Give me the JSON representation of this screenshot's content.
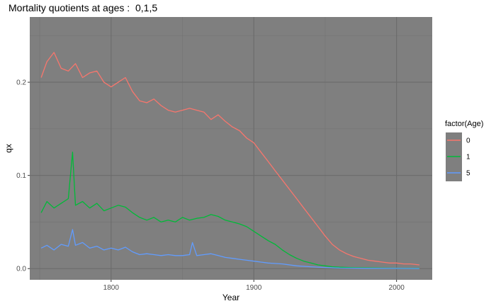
{
  "chart_data": {
    "type": "line",
    "title": "Mortality quotients at ages :  0,1,5",
    "xlabel": "Year",
    "ylabel": "qx",
    "xlim": [
      1743,
      2025
    ],
    "ylim": [
      -0.012,
      0.27
    ],
    "x_ticks": [
      1800,
      1900,
      2000
    ],
    "x_tick_labels": [
      "1800",
      "1900",
      "2000"
    ],
    "y_ticks": [
      0.0,
      0.1,
      0.2
    ],
    "y_tick_labels": [
      "0.0",
      "0.1",
      "0.2"
    ],
    "grid": true,
    "panel_background": "#7f7f7f",
    "legend": {
      "title": "factor(Age)",
      "position": "right",
      "entries": [
        "0",
        "1",
        "5"
      ]
    },
    "series": [
      {
        "name": "0",
        "color": "#F8766D",
        "x": [
          1751,
          1755,
          1760,
          1765,
          1770,
          1775,
          1780,
          1785,
          1790,
          1795,
          1800,
          1805,
          1810,
          1815,
          1820,
          1825,
          1830,
          1835,
          1840,
          1845,
          1850,
          1855,
          1860,
          1865,
          1870,
          1875,
          1880,
          1885,
          1890,
          1895,
          1900,
          1905,
          1910,
          1915,
          1920,
          1925,
          1930,
          1935,
          1940,
          1945,
          1950,
          1955,
          1960,
          1965,
          1970,
          1975,
          1980,
          1985,
          1990,
          1995,
          2000,
          2005,
          2010,
          2016
        ],
        "y": [
          0.205,
          0.222,
          0.232,
          0.215,
          0.212,
          0.22,
          0.205,
          0.21,
          0.212,
          0.2,
          0.195,
          0.2,
          0.205,
          0.19,
          0.18,
          0.178,
          0.182,
          0.175,
          0.17,
          0.168,
          0.17,
          0.172,
          0.17,
          0.168,
          0.16,
          0.165,
          0.158,
          0.152,
          0.148,
          0.14,
          0.135,
          0.125,
          0.115,
          0.105,
          0.095,
          0.085,
          0.075,
          0.065,
          0.055,
          0.045,
          0.035,
          0.026,
          0.02,
          0.016,
          0.013,
          0.011,
          0.009,
          0.008,
          0.007,
          0.006,
          0.006,
          0.005,
          0.005,
          0.004
        ]
      },
      {
        "name": "1",
        "color": "#00BA38",
        "x": [
          1751,
          1755,
          1760,
          1765,
          1770,
          1773,
          1775,
          1780,
          1785,
          1790,
          1795,
          1800,
          1805,
          1810,
          1815,
          1820,
          1825,
          1830,
          1835,
          1840,
          1845,
          1850,
          1855,
          1860,
          1865,
          1870,
          1875,
          1880,
          1885,
          1890,
          1895,
          1900,
          1905,
          1910,
          1915,
          1920,
          1925,
          1930,
          1935,
          1940,
          1945,
          1950,
          1955,
          1960,
          1970,
          1980,
          1990,
          2000,
          2010,
          2016
        ],
        "y": [
          0.06,
          0.072,
          0.065,
          0.07,
          0.075,
          0.125,
          0.068,
          0.072,
          0.065,
          0.07,
          0.062,
          0.065,
          0.068,
          0.066,
          0.06,
          0.055,
          0.052,
          0.055,
          0.05,
          0.052,
          0.05,
          0.055,
          0.052,
          0.054,
          0.055,
          0.058,
          0.056,
          0.052,
          0.05,
          0.048,
          0.045,
          0.04,
          0.035,
          0.03,
          0.026,
          0.02,
          0.015,
          0.011,
          0.008,
          0.006,
          0.004,
          0.003,
          0.002,
          0.0015,
          0.001,
          0.0008,
          0.0006,
          0.0004,
          0.0003,
          0.0003
        ]
      },
      {
        "name": "5",
        "color": "#619CFF",
        "x": [
          1751,
          1755,
          1760,
          1765,
          1770,
          1773,
          1775,
          1780,
          1785,
          1790,
          1795,
          1800,
          1805,
          1810,
          1815,
          1820,
          1825,
          1830,
          1835,
          1840,
          1845,
          1850,
          1855,
          1857,
          1860,
          1865,
          1870,
          1875,
          1880,
          1885,
          1890,
          1895,
          1900,
          1905,
          1910,
          1920,
          1930,
          1940,
          1950,
          1960,
          1980,
          2000,
          2016
        ],
        "y": [
          0.022,
          0.025,
          0.02,
          0.026,
          0.024,
          0.042,
          0.025,
          0.028,
          0.022,
          0.024,
          0.02,
          0.022,
          0.02,
          0.023,
          0.018,
          0.015,
          0.016,
          0.015,
          0.014,
          0.015,
          0.014,
          0.014,
          0.015,
          0.028,
          0.014,
          0.015,
          0.016,
          0.014,
          0.012,
          0.011,
          0.01,
          0.009,
          0.008,
          0.007,
          0.006,
          0.005,
          0.003,
          0.002,
          0.0012,
          0.0006,
          0.0003,
          0.0002,
          0.0001
        ]
      }
    ]
  }
}
